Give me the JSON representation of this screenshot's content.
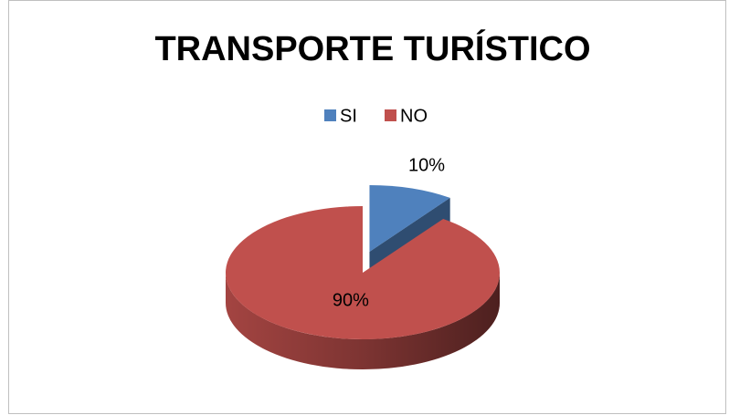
{
  "chart_data": {
    "type": "pie",
    "title": "TRANSPORTE TURÍSTICO",
    "categories": [
      "SI",
      "NO"
    ],
    "values": [
      10,
      90
    ],
    "value_labels": [
      "10%",
      "90%"
    ],
    "colors": [
      "#4f81bd",
      "#c0504d"
    ],
    "legend": "top",
    "exploded": [
      true,
      false
    ]
  }
}
